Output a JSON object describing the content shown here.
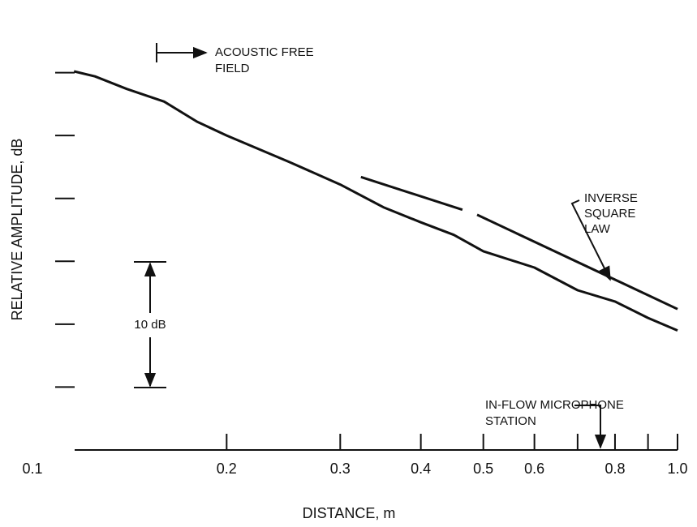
{
  "chart_data": {
    "type": "line",
    "xlabel": "DISTANCE, m",
    "ylabel": "RELATIVE AMPLITUDE, dB",
    "xscale": "log",
    "xlim": [
      0.1,
      1
    ],
    "ylim": [
      0,
      35
    ],
    "xticks": [
      0.1,
      0.2,
      0.3,
      0.4,
      0.5,
      0.6,
      0.8,
      {
        "value": 1,
        "label": "1.0"
      }
    ],
    "xminorticks": [
      0.7,
      0.9
    ],
    "yminorticks": [
      5,
      10,
      15,
      20,
      25,
      30
    ],
    "grid": false,
    "series": [
      {
        "color": "#111111",
        "x": [
          0.116,
          0.125,
          0.14,
          0.16,
          0.18,
          0.2,
          0.25,
          0.3,
          0.35,
          0.4,
          0.45,
          0.5,
          0.6,
          0.7,
          0.8,
          0.9,
          1.0
        ],
        "values": [
          30.1,
          29.7,
          28.7,
          27.7,
          26.1,
          25.0,
          22.9,
          21.1,
          19.3,
          18.1,
          17.1,
          15.8,
          14.5,
          12.7,
          11.8,
          10.5,
          9.5
        ]
      },
      {
        "color": "#111111",
        "x": [
          0.323,
          0.464,
          0.475,
          0.489,
          1.0
        ],
        "values": [
          21.7,
          19.1,
          null,
          18.7,
          11.2
        ]
      }
    ],
    "annotations": {
      "free_field": [
        "ACOUSTIC FREE",
        "FIELD"
      ],
      "inverse_square": [
        "INVERSE",
        "SQUARE",
        "LAW"
      ],
      "scale": "10 dB",
      "microphone": [
        "IN-FLOW MICROPHONE",
        "STATION"
      ]
    }
  }
}
